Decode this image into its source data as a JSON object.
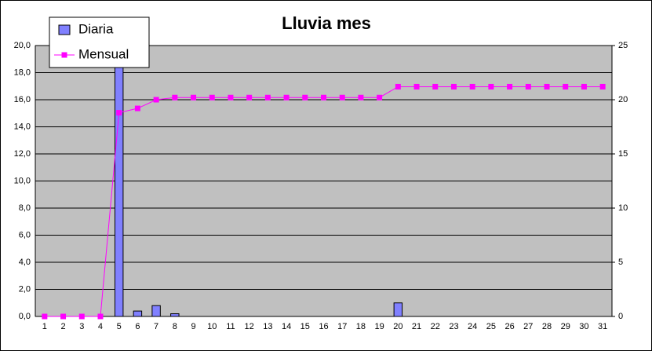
{
  "chart_data": {
    "type": "bar_line",
    "title": "Lluvia mes",
    "categories": [
      "1",
      "2",
      "3",
      "4",
      "5",
      "6",
      "7",
      "8",
      "9",
      "10",
      "11",
      "12",
      "13",
      "14",
      "15",
      "16",
      "17",
      "18",
      "19",
      "20",
      "21",
      "22",
      "23",
      "24",
      "25",
      "26",
      "27",
      "28",
      "29",
      "30",
      "31"
    ],
    "series": [
      {
        "name": "Diaria",
        "type": "bar",
        "color": "#8080ff",
        "values": [
          0,
          0,
          0,
          0,
          18.8,
          0.4,
          0.8,
          0.2,
          0,
          0,
          0,
          0,
          0,
          0,
          0,
          0,
          0,
          0,
          0,
          1.0,
          0,
          0,
          0,
          0,
          0,
          0,
          0,
          0,
          0,
          0,
          0
        ]
      },
      {
        "name": "Mensual",
        "type": "line",
        "axis": "y2",
        "color": "#ff00ff",
        "values": [
          0,
          0,
          0,
          0,
          18.8,
          19.2,
          20.0,
          20.2,
          20.2,
          20.2,
          20.2,
          20.2,
          20.2,
          20.2,
          20.2,
          20.2,
          20.2,
          20.2,
          20.2,
          21.2,
          21.2,
          21.2,
          21.2,
          21.2,
          21.2,
          21.2,
          21.2,
          21.2,
          21.2,
          21.2,
          21.2
        ]
      }
    ],
    "ylim": [
      0,
      20
    ],
    "yticks": [
      {
        "value": 0,
        "label": "0,0"
      },
      {
        "value": 2,
        "label": "2,0"
      },
      {
        "value": 4,
        "label": "4,0"
      },
      {
        "value": 6,
        "label": "6,0"
      },
      {
        "value": 8,
        "label": "8,0"
      },
      {
        "value": 10,
        "label": "10,0"
      },
      {
        "value": 12,
        "label": "12,0"
      },
      {
        "value": 14,
        "label": "14,0"
      },
      {
        "value": 16,
        "label": "16,0"
      },
      {
        "value": 18,
        "label": "18,0"
      },
      {
        "value": 20,
        "label": "20,0"
      }
    ],
    "y2lim": [
      0,
      25
    ],
    "y2ticks": [
      0,
      5,
      10,
      15,
      20,
      25
    ],
    "grid": true,
    "legend": "top-left"
  }
}
